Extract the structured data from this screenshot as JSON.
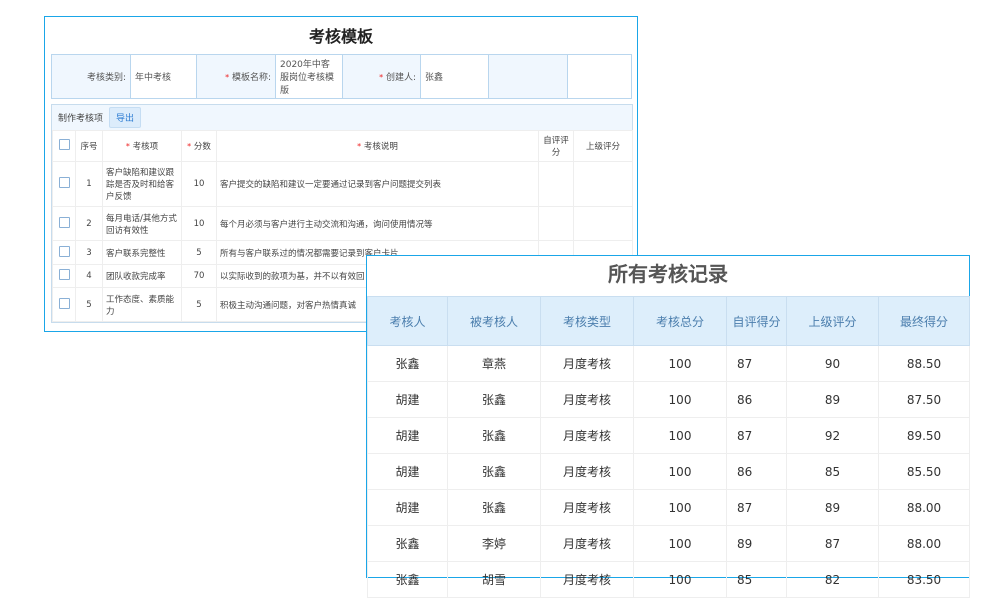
{
  "template": {
    "title": "考核模板",
    "info": {
      "category_label": "考核类别:",
      "category_value": "年中考核",
      "name_label": "模板名称:",
      "name_value": "2020年中客服岗位考核模版",
      "creator_label": "创建人:",
      "creator_value": "张鑫"
    },
    "toolbar": {
      "label": "制作考核项",
      "export_label": "导出"
    },
    "columns": [
      "序号",
      "考核项",
      "分数",
      "考核说明",
      "自评评分",
      "上级评分"
    ],
    "rows": [
      {
        "no": "1",
        "item": "客户缺陷和建议跟踪是否及时和给客户反馈",
        "score": "10",
        "desc": "客户提交的缺陷和建议一定要通过记录到客户问题提交列表"
      },
      {
        "no": "2",
        "item": "每月电话/其他方式回访有效性",
        "score": "10",
        "desc": "每个月必须与客户进行主动交流和沟通，询问使用情况等"
      },
      {
        "no": "3",
        "item": "客户联系完整性",
        "score": "5",
        "desc": "所有与客户联系过的情况都需要记录到客户卡片"
      },
      {
        "no": "4",
        "item": "团队收款完成率",
        "score": "70",
        "desc": "以实际收到的款项为基，并不以有效回"
      },
      {
        "no": "5",
        "item": "工作态度、素质能力",
        "score": "5",
        "desc": "积极主动沟通问题，对客户热情真诚"
      }
    ]
  },
  "records": {
    "title": "所有考核记录",
    "columns": [
      "考核人",
      "被考核人",
      "考核类型",
      "考核总分",
      "自评得分",
      "上级评分",
      "最终得分"
    ],
    "rows": [
      [
        "张鑫",
        "章燕",
        "月度考核",
        "100",
        "87",
        "90",
        "88.50"
      ],
      [
        "胡建",
        "张鑫",
        "月度考核",
        "100",
        "86",
        "89",
        "87.50"
      ],
      [
        "胡建",
        "张鑫",
        "月度考核",
        "100",
        "87",
        "92",
        "89.50"
      ],
      [
        "胡建",
        "张鑫",
        "月度考核",
        "100",
        "86",
        "85",
        "85.50"
      ],
      [
        "胡建",
        "张鑫",
        "月度考核",
        "100",
        "87",
        "89",
        "88.00"
      ],
      [
        "张鑫",
        "李婷",
        "月度考核",
        "100",
        "89",
        "87",
        "88.00"
      ],
      [
        "张鑫",
        "胡雪",
        "月度考核",
        "100",
        "85",
        "82",
        "83.50"
      ]
    ]
  },
  "colors": {
    "border": "#1aa6e8",
    "header_bg": "#ddeefb",
    "required": "#ee2222"
  }
}
